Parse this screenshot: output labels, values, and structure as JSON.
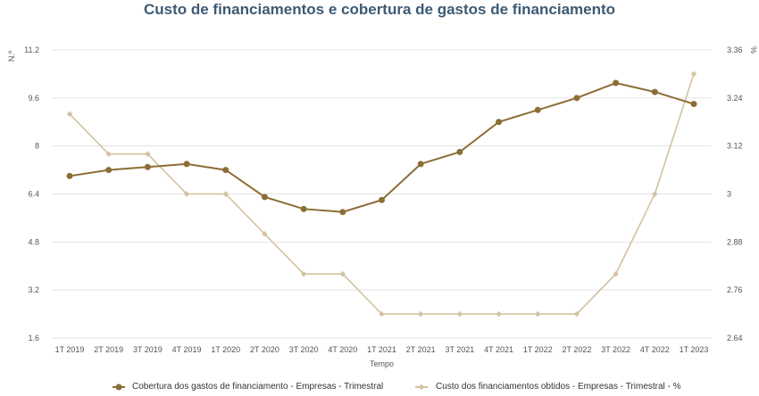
{
  "chart_data": {
    "type": "line",
    "title": "Custo de financiamentos e cobertura de gastos de financiamento",
    "xlabel": "Tempo",
    "ylabel_left": "N.º",
    "ylabel_right": "%",
    "categories": [
      "1T 2019",
      "2T 2019",
      "3T 2019",
      "4T 2019",
      "1T 2020",
      "2T 2020",
      "3T 2020",
      "4T 2020",
      "1T 2021",
      "2T 2021",
      "3T 2021",
      "4T 2021",
      "1T 2022",
      "2T 2022",
      "3T 2022",
      "4T 2022",
      "1T 2023"
    ],
    "y_left_ticks": [
      "1.6",
      "3.2",
      "4.8",
      "6.4",
      "8",
      "9.6",
      "11.2"
    ],
    "y_right_ticks": [
      "2.64",
      "2.76",
      "2.88",
      "3",
      "3.12",
      "3.24",
      "3.36"
    ],
    "ylim_left": [
      1.6,
      11.2
    ],
    "ylim_right": [
      2.64,
      3.36
    ],
    "grid": true,
    "legend_position": "bottom",
    "series": [
      {
        "name": "Cobertura dos gastos de financiamento - Empresas - Trimestral",
        "axis": "left",
        "color": "#8c6d35",
        "marker": "circle",
        "values": [
          7.0,
          7.2,
          7.3,
          7.4,
          7.2,
          6.3,
          5.9,
          5.8,
          6.2,
          7.4,
          7.8,
          8.8,
          9.2,
          9.6,
          10.1,
          9.8,
          9.4
        ]
      },
      {
        "name": "Custo dos financiamentos obtidos - Empresas - Trimestral - %",
        "axis": "right",
        "color": "#d2c2a0",
        "marker": "diamond",
        "values": [
          3.2,
          3.1,
          3.1,
          3.0,
          3.0,
          2.9,
          2.8,
          2.8,
          2.7,
          2.7,
          2.7,
          2.7,
          2.7,
          2.7,
          2.8,
          3.0,
          3.3
        ]
      }
    ]
  }
}
